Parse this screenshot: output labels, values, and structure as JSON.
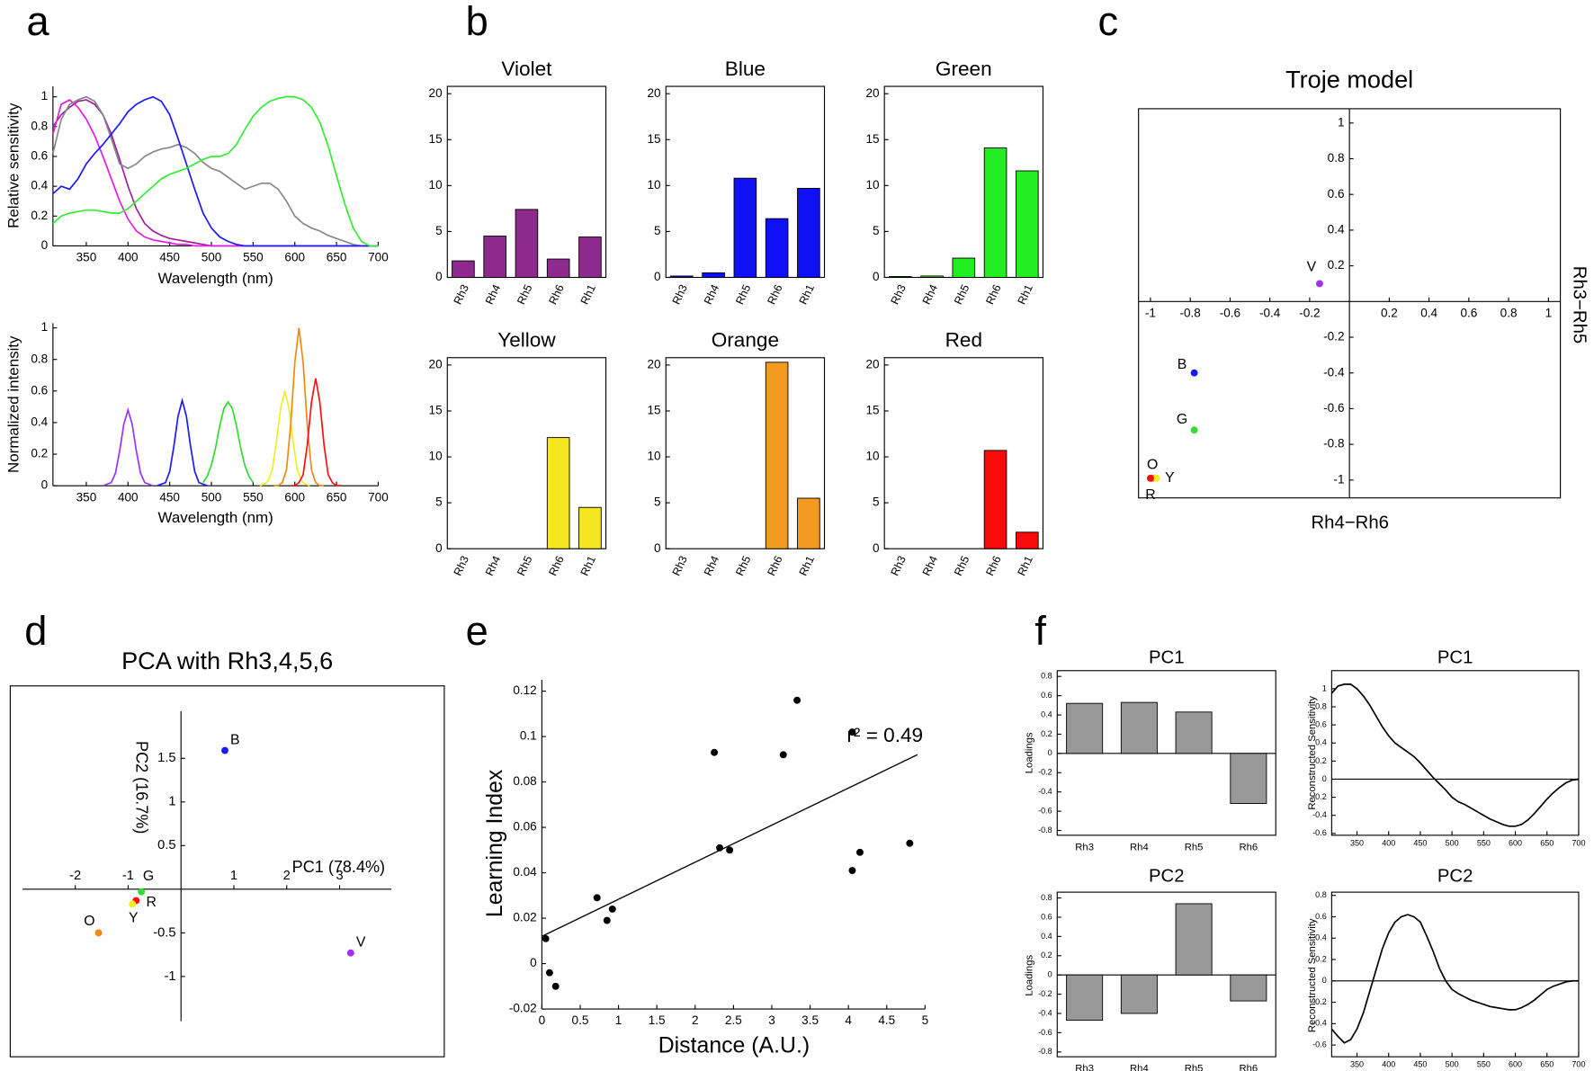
{
  "panel_labels": [
    "a",
    "b",
    "c",
    "d",
    "e",
    "f"
  ],
  "chart_data": [
    {
      "type": "line",
      "xlabel": "Wavelength (nm)",
      "ylabel": "Relative sensitivity",
      "x": [
        310,
        320,
        330,
        340,
        350,
        360,
        370,
        380,
        390,
        400,
        410,
        420,
        430,
        440,
        450,
        460,
        470,
        480,
        490,
        500,
        510,
        520,
        530,
        540,
        550,
        560,
        570,
        580,
        590,
        600,
        610,
        620,
        630,
        640,
        650,
        660,
        670,
        680,
        690,
        700
      ],
      "xlim": [
        310,
        700
      ],
      "ylim": [
        0,
        1.07
      ],
      "xticks": [
        350,
        400,
        450,
        500,
        550,
        600,
        650,
        700
      ],
      "yticks": [
        0,
        0.2,
        0.4,
        0.6,
        0.8,
        1
      ],
      "series": [
        {
          "color": "#a020a0",
          "values": [
            0.8,
            0.88,
            0.93,
            0.97,
            0.98,
            0.95,
            0.88,
            0.75,
            0.58,
            0.4,
            0.25,
            0.15,
            0.1,
            0.07,
            0.05,
            0.04,
            0.03,
            0.02,
            0.01,
            0,
            0,
            0,
            0,
            0,
            0,
            0,
            0,
            0,
            0,
            0,
            0,
            0,
            0,
            0,
            0,
            0,
            0,
            0,
            0,
            0
          ]
        },
        {
          "color": "#e31ee3",
          "values": [
            0.75,
            0.95,
            0.98,
            0.93,
            0.85,
            0.74,
            0.6,
            0.45,
            0.3,
            0.18,
            0.1,
            0.06,
            0.04,
            0.03,
            0.02,
            0.01,
            0.01,
            0,
            0,
            0,
            0,
            0,
            0,
            0,
            0,
            0,
            0,
            0,
            0,
            0,
            0,
            0,
            0,
            0,
            0,
            0,
            0,
            0,
            0,
            0
          ]
        },
        {
          "color": "#888888",
          "values": [
            0.62,
            0.85,
            0.95,
            0.98,
            1,
            0.97,
            0.88,
            0.72,
            0.55,
            0.52,
            0.55,
            0.6,
            0.63,
            0.65,
            0.66,
            0.68,
            0.66,
            0.62,
            0.56,
            0.52,
            0.5,
            0.46,
            0.42,
            0.38,
            0.4,
            0.42,
            0.42,
            0.38,
            0.3,
            0.2,
            0.15,
            0.12,
            0.1,
            0.07,
            0.05,
            0.03,
            0.01,
            0,
            0,
            0
          ]
        },
        {
          "color": "#1a1aff",
          "values": [
            0.35,
            0.4,
            0.38,
            0.45,
            0.55,
            0.62,
            0.68,
            0.75,
            0.82,
            0.9,
            0.95,
            0.98,
            1,
            0.97,
            0.88,
            0.72,
            0.55,
            0.38,
            0.22,
            0.12,
            0.06,
            0.03,
            0.01,
            0,
            0,
            0,
            0,
            0,
            0,
            0,
            0,
            0,
            0,
            0,
            0,
            0,
            0,
            0,
            0,
            0
          ]
        },
        {
          "color": "#33ee33",
          "values": [
            0.15,
            0.2,
            0.22,
            0.23,
            0.24,
            0.24,
            0.23,
            0.22,
            0.22,
            0.25,
            0.3,
            0.35,
            0.4,
            0.45,
            0.48,
            0.5,
            0.52,
            0.55,
            0.58,
            0.6,
            0.6,
            0.62,
            0.68,
            0.78,
            0.87,
            0.93,
            0.97,
            0.99,
            1,
            1,
            0.98,
            0.93,
            0.83,
            0.67,
            0.47,
            0.28,
            0.12,
            0.03,
            0,
            0
          ]
        }
      ]
    },
    {
      "type": "line",
      "xlabel": "Wavelength (nm)",
      "ylabel": "Normalized intensity",
      "xlim": [
        310,
        700
      ],
      "ylim": [
        0,
        1.03
      ],
      "xticks": [
        350,
        400,
        450,
        500,
        550,
        600,
        650,
        700
      ],
      "yticks": [
        0,
        0.2,
        0.4,
        0.6,
        0.8,
        1
      ],
      "series": [
        {
          "color": "#9b30ff",
          "x": [
            370,
            375,
            380,
            385,
            390,
            395,
            400,
            405,
            410,
            415,
            420,
            425,
            430
          ],
          "values": [
            0,
            0.01,
            0.02,
            0.08,
            0.22,
            0.39,
            0.48,
            0.39,
            0.22,
            0.08,
            0.02,
            0.01,
            0
          ]
        },
        {
          "color": "#1a1aff",
          "x": [
            435,
            440,
            445,
            450,
            455,
            460,
            465,
            470,
            475,
            480,
            485,
            490,
            495
          ],
          "values": [
            0,
            0.01,
            0.02,
            0.09,
            0.25,
            0.44,
            0.54,
            0.44,
            0.25,
            0.09,
            0.02,
            0.01,
            0
          ]
        },
        {
          "color": "#33dd33",
          "x": [
            490,
            495,
            500,
            505,
            510,
            515,
            520,
            525,
            530,
            535,
            540,
            545,
            550
          ],
          "values": [
            0.02,
            0.06,
            0.13,
            0.24,
            0.38,
            0.49,
            0.53,
            0.49,
            0.38,
            0.24,
            0.13,
            0.06,
            0.02
          ]
        },
        {
          "color": "#f0f020",
          "x": [
            558,
            563,
            568,
            573,
            578,
            583,
            588,
            593,
            598,
            603,
            608,
            613,
            618
          ],
          "values": [
            0,
            0.01,
            0.03,
            0.1,
            0.28,
            0.49,
            0.6,
            0.49,
            0.28,
            0.1,
            0.03,
            0.01,
            0
          ]
        },
        {
          "color": "#f08a10",
          "x": [
            575,
            580,
            585,
            590,
            595,
            600,
            605,
            610,
            615,
            620,
            625,
            630,
            635
          ],
          "values": [
            0,
            0,
            0.02,
            0.1,
            0.38,
            0.78,
            1,
            0.78,
            0.38,
            0.1,
            0.02,
            0,
            0
          ]
        },
        {
          "color": "#ff1010",
          "x": [
            595,
            600,
            605,
            610,
            615,
            620,
            625,
            630,
            635,
            640,
            645,
            650,
            655
          ],
          "values": [
            0,
            0,
            0.02,
            0.07,
            0.26,
            0.53,
            0.68,
            0.53,
            0.26,
            0.07,
            0.02,
            0,
            0
          ]
        }
      ]
    },
    {
      "type": "bar",
      "title": "Violet",
      "categories": [
        "Rh3",
        "Rh4",
        "Rh5",
        "Rh6",
        "Rh1"
      ],
      "values": [
        1.8,
        4.5,
        7.4,
        2.0,
        4.4
      ],
      "color": "#8e2a8e",
      "ylim": [
        0,
        20.8
      ],
      "yticks": [
        0,
        5,
        10,
        15,
        20
      ]
    },
    {
      "type": "bar",
      "title": "Blue",
      "categories": [
        "Rh3",
        "Rh4",
        "Rh5",
        "Rh6",
        "Rh1"
      ],
      "values": [
        0.15,
        0.5,
        10.8,
        6.4,
        9.7
      ],
      "color": "#1010f5",
      "ylim": [
        0,
        20.8
      ],
      "yticks": [
        0,
        5,
        10,
        15,
        20
      ]
    },
    {
      "type": "bar",
      "title": "Green",
      "categories": [
        "Rh3",
        "Rh4",
        "Rh5",
        "Rh6",
        "Rh1"
      ],
      "values": [
        0.1,
        0.15,
        2.1,
        14.1,
        11.6
      ],
      "color": "#22ee22",
      "ylim": [
        0,
        20.8
      ],
      "yticks": [
        0,
        5,
        10,
        15,
        20
      ]
    },
    {
      "type": "bar",
      "title": "Yellow",
      "categories": [
        "Rh3",
        "Rh4",
        "Rh5",
        "Rh6",
        "Rh1"
      ],
      "values": [
        0,
        0,
        0,
        12.1,
        4.5
      ],
      "color": "#f5e620",
      "ylim": [
        0,
        20.8
      ],
      "yticks": [
        0,
        5,
        10,
        15,
        20
      ]
    },
    {
      "type": "bar",
      "title": "Orange",
      "categories": [
        "Rh3",
        "Rh4",
        "Rh5",
        "Rh6",
        "Rh1"
      ],
      "values": [
        0,
        0,
        0,
        20.3,
        5.5
      ],
      "color": "#f39a20",
      "ylim": [
        0,
        20.8
      ],
      "yticks": [
        0,
        5,
        10,
        15,
        20
      ]
    },
    {
      "type": "bar",
      "title": "Red",
      "categories": [
        "Rh3",
        "Rh4",
        "Rh5",
        "Rh6",
        "Rh1"
      ],
      "values": [
        0,
        0,
        0,
        10.7,
        1.8
      ],
      "color": "#fa0a0a",
      "ylim": [
        0,
        20.8
      ],
      "yticks": [
        0,
        5,
        10,
        15,
        20
      ]
    },
    {
      "type": "scatter",
      "title": "Troje model",
      "xlabel": "Rh4−Rh6",
      "ylabel": "Rh3−Rh5",
      "xlim": [
        -1.06,
        1.06
      ],
      "ylim": [
        -1.1,
        1.08
      ],
      "xticks": [
        -1,
        -0.8,
        -0.6,
        -0.4,
        -0.2,
        0.2,
        0.4,
        0.6,
        0.8,
        1
      ],
      "yticks": [
        -1,
        -0.8,
        -0.6,
        -0.4,
        -0.2,
        0.2,
        0.4,
        0.6,
        0.8,
        1
      ],
      "points": [
        {
          "label": "V",
          "x": -0.15,
          "y": 0.1,
          "color": "#9b30ff"
        },
        {
          "label": "B",
          "x": -0.78,
          "y": -0.4,
          "color": "#1a1aff"
        },
        {
          "label": "G",
          "x": -0.78,
          "y": -0.72,
          "color": "#33dd33"
        },
        {
          "label": "O",
          "x": -0.99,
          "y": -0.99,
          "color": "#f08a10"
        },
        {
          "label": "Y",
          "x": -0.97,
          "y": -0.99,
          "color": "#f0f020"
        },
        {
          "label": "R",
          "x": -1.0,
          "y": -0.99,
          "color": "#ff1010"
        }
      ]
    },
    {
      "type": "scatter",
      "title": "PCA with Rh3,4,5,6",
      "xlabel": "PC1 (78.4%)",
      "ylabel": "PC2 (16.7%)",
      "xlim": [
        -3.23,
        4.98
      ],
      "ylim": [
        -1.92,
        2.33
      ],
      "xticks": [
        -2,
        -1,
        1,
        2,
        3
      ],
      "yticks": [
        -1,
        -0.5,
        0.5,
        1,
        1.5
      ],
      "points": [
        {
          "label": "B",
          "x": 0.83,
          "y": 1.59,
          "color": "#1a1aff"
        },
        {
          "label": "G",
          "x": -0.75,
          "y": -0.03,
          "color": "#33dd33"
        },
        {
          "label": "R",
          "x": -0.85,
          "y": -0.13,
          "color": "#ff1010"
        },
        {
          "label": "Y",
          "x": -0.92,
          "y": -0.17,
          "color": "#f0f020"
        },
        {
          "label": "O",
          "x": -1.56,
          "y": -0.5,
          "color": "#f08a10"
        },
        {
          "label": "V",
          "x": 3.21,
          "y": -0.73,
          "color": "#9b30ff"
        }
      ]
    },
    {
      "type": "scatter",
      "xlabel": "Distance (A.U.)",
      "ylabel": "Learning Index",
      "annotation": "r² = 0.49",
      "xlim": [
        0,
        5
      ],
      "ylim": [
        -0.02,
        0.125
      ],
      "xticks": [
        0,
        0.5,
        1,
        1.5,
        2,
        2.5,
        3,
        3.5,
        4,
        4.5,
        5
      ],
      "yticks": [
        -0.02,
        0,
        0.02,
        0.04,
        0.06,
        0.08,
        0.1,
        0.12
      ],
      "x": [
        0.05,
        0.1,
        0.18,
        0.72,
        0.85,
        0.92,
        2.25,
        2.32,
        2.45,
        3.15,
        3.33,
        4.05,
        4.05,
        4.15,
        4.8
      ],
      "values": [
        0.011,
        -0.004,
        -0.01,
        0.029,
        0.019,
        0.024,
        0.093,
        0.051,
        0.05,
        0.092,
        0.116,
        0.102,
        0.041,
        0.049,
        0.053
      ],
      "color": "#000000",
      "fit": {
        "x": [
          0,
          4.9
        ],
        "values": [
          0.012,
          0.092
        ]
      }
    },
    {
      "type": "bar",
      "title": "PC1",
      "ylabel": "Loadings",
      "categories": [
        "Rh3",
        "Rh4",
        "Rh5",
        "Rh6"
      ],
      "values": [
        0.52,
        0.53,
        0.43,
        -0.52
      ],
      "color": "#999999",
      "ylim": [
        -0.85,
        0.86
      ],
      "yticks": [
        -0.8,
        -0.6,
        -0.4,
        -0.2,
        0,
        0.2,
        0.4,
        0.6,
        0.8
      ],
      "zero_line": true
    },
    {
      "type": "line",
      "title": "PC1",
      "ylabel": "Reconstructed Sensitivity",
      "x": [
        310,
        320,
        330,
        340,
        350,
        360,
        370,
        380,
        390,
        400,
        410,
        420,
        430,
        440,
        450,
        460,
        470,
        480,
        490,
        500,
        510,
        520,
        530,
        540,
        550,
        560,
        570,
        580,
        590,
        600,
        610,
        620,
        630,
        640,
        650,
        660,
        670,
        680,
        690,
        700
      ],
      "xlim": [
        310,
        700
      ],
      "ylim": [
        -0.62,
        1.2
      ],
      "xticks": [
        350,
        400,
        450,
        500,
        550,
        600,
        650,
        700
      ],
      "yticks": [
        -0.6,
        -0.4,
        -0.2,
        0,
        0.2,
        0.4,
        0.6,
        0.8,
        1
      ],
      "zero_line": true,
      "series": [
        {
          "color": "#000000",
          "values": [
            0.95,
            1.03,
            1.05,
            1.05,
            1.0,
            0.92,
            0.82,
            0.7,
            0.58,
            0.48,
            0.4,
            0.35,
            0.3,
            0.25,
            0.18,
            0.1,
            0.02,
            -0.05,
            -0.12,
            -0.2,
            -0.25,
            -0.28,
            -0.32,
            -0.36,
            -0.4,
            -0.44,
            -0.47,
            -0.5,
            -0.52,
            -0.52,
            -0.5,
            -0.45,
            -0.38,
            -0.3,
            -0.22,
            -0.15,
            -0.09,
            -0.04,
            -0.01,
            0
          ]
        }
      ]
    },
    {
      "type": "bar",
      "title": "PC2",
      "ylabel": "Loadings",
      "categories": [
        "Rh3",
        "Rh4",
        "Rh5",
        "Rh6"
      ],
      "values": [
        -0.47,
        -0.4,
        0.74,
        -0.27
      ],
      "color": "#999999",
      "ylim": [
        -0.85,
        0.86
      ],
      "yticks": [
        -0.8,
        -0.6,
        -0.4,
        -0.2,
        0,
        0.2,
        0.4,
        0.6,
        0.8
      ],
      "zero_line": true
    },
    {
      "type": "line",
      "title": "PC2",
      "ylabel": "Reconstructed Sensitivity",
      "x": [
        310,
        320,
        330,
        340,
        350,
        360,
        370,
        380,
        390,
        400,
        410,
        420,
        430,
        440,
        450,
        460,
        470,
        480,
        490,
        500,
        510,
        520,
        530,
        540,
        550,
        560,
        570,
        580,
        590,
        600,
        610,
        620,
        630,
        640,
        650,
        660,
        670,
        680,
        690,
        700
      ],
      "xlim": [
        310,
        700
      ],
      "ylim": [
        -0.71,
        0.83
      ],
      "xticks": [
        350,
        400,
        450,
        500,
        550,
        600,
        650,
        700
      ],
      "yticks": [
        -0.6,
        -0.4,
        -0.2,
        0,
        0.2,
        0.4,
        0.6,
        0.8
      ],
      "zero_line": true,
      "series": [
        {
          "color": "#000000",
          "values": [
            -0.45,
            -0.52,
            -0.58,
            -0.55,
            -0.45,
            -0.3,
            -0.1,
            0.1,
            0.3,
            0.45,
            0.55,
            0.6,
            0.62,
            0.6,
            0.55,
            0.42,
            0.28,
            0.12,
            0,
            -0.08,
            -0.12,
            -0.15,
            -0.18,
            -0.2,
            -0.22,
            -0.24,
            -0.25,
            -0.26,
            -0.27,
            -0.27,
            -0.25,
            -0.22,
            -0.18,
            -0.13,
            -0.08,
            -0.05,
            -0.03,
            -0.01,
            0,
            0
          ]
        }
      ]
    }
  ]
}
